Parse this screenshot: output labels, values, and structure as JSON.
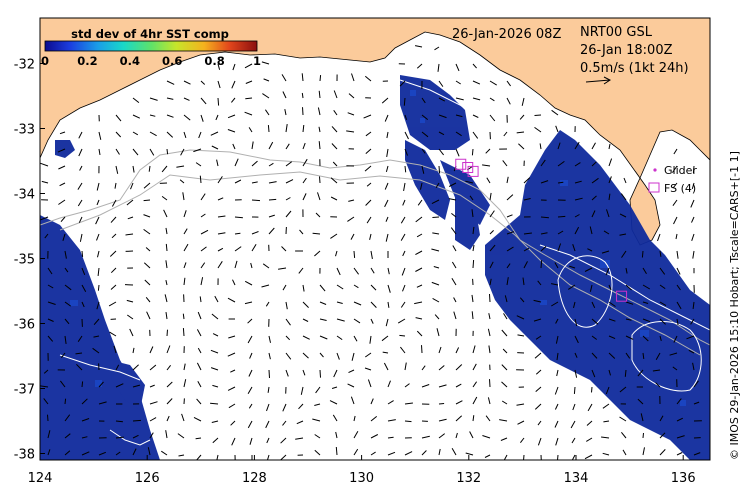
{
  "title": {
    "datetime": "26-Jan-2026 08Z",
    "model": "NRT00 GSL",
    "current_time": "26-Jan 18:00Z",
    "scale_arrow": "0.5m/s (1kt 24h)"
  },
  "colorbar": {
    "title": "std dev of 4hr SST comp",
    "ticks": [
      "0",
      "0.2",
      "0.4",
      "0.6",
      "0.8",
      "1"
    ],
    "range": [
      0,
      1
    ]
  },
  "legend": {
    "glider": "Glider",
    "fs": "FS (4)"
  },
  "side_credit": "© IMOS 29-Jan-2026 15:10 Hobart; Tscale=CARS+[-1 1]",
  "axes": {
    "x_ticks": [
      "124",
      "126",
      "128",
      "130",
      "132",
      "134",
      "136"
    ],
    "y_ticks": [
      "-32",
      "-33",
      "-34",
      "-35",
      "-36",
      "-37",
      "-38"
    ],
    "lon_range": [
      124,
      136.5
    ],
    "lat_range": [
      -38.1,
      -31.3
    ]
  },
  "colors": {
    "land": "#fbcb9b",
    "water_dark": "#0f2a9c",
    "water_mid": "#1a48c9",
    "contour": "#b0b0b0",
    "marker": "#cc33cc"
  },
  "fs_markers": [
    {
      "lon": 131.85,
      "lat": -33.55
    },
    {
      "lon": 131.98,
      "lat": -33.6
    },
    {
      "lon": 132.08,
      "lat": -33.66
    },
    {
      "lon": 134.85,
      "lat": -35.58
    }
  ]
}
